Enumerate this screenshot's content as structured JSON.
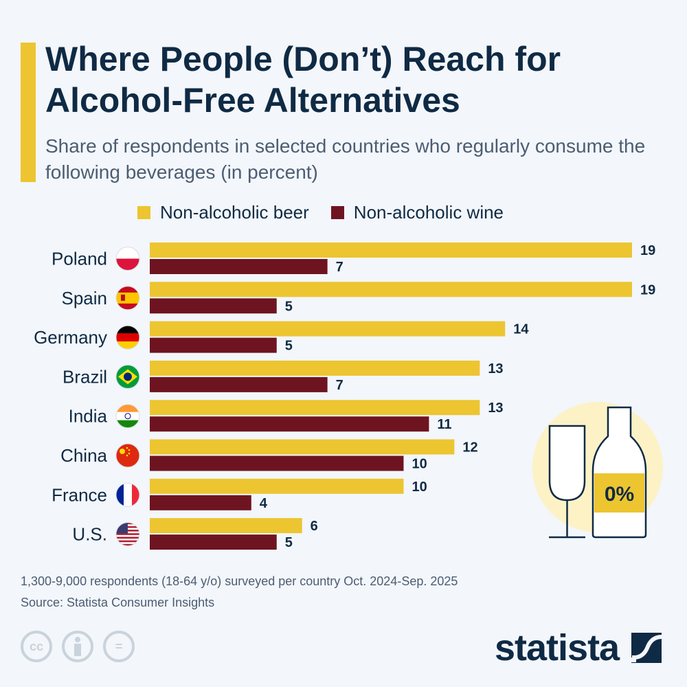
{
  "title": "Where People (Don’t) Reach for Alcohol-Free Alternatives",
  "subtitle": "Share of respondents in selected countries who regularly consume the following beverages (in percent)",
  "colors": {
    "beer": "#ecc531",
    "wine": "#6e1420",
    "text": "#0f2a44",
    "background": "#f3f6fa"
  },
  "chart_data": {
    "type": "bar",
    "orientation": "horizontal",
    "categories": [
      "Poland",
      "Spain",
      "Germany",
      "Brazil",
      "India",
      "China",
      "France",
      "U.S."
    ],
    "series": [
      {
        "name": "Non-alcoholic beer",
        "values": [
          19,
          19,
          14,
          13,
          13,
          12,
          10,
          6
        ]
      },
      {
        "name": "Non-alcoholic wine",
        "values": [
          7,
          5,
          5,
          7,
          11,
          10,
          4,
          5
        ]
      }
    ],
    "xlim": [
      0,
      19
    ],
    "grid": false,
    "legend": "top",
    "data_labels": true,
    "flags": [
      "flag-poland-icon",
      "flag-spain-icon",
      "flag-germany-icon",
      "flag-brazil-icon",
      "flag-india-icon",
      "flag-china-icon",
      "flag-france-icon",
      "flag-us-icon"
    ]
  },
  "illustration": {
    "label": "0%",
    "icon": "wine-glass-and-bottle-icon"
  },
  "footer": {
    "note": "1,300-9,000 respondents (18-64 y/o) surveyed per country Oct. 2024-Sep. 2025",
    "source": "Source: Statista Consumer Insights",
    "license_icons": [
      "cc-icon",
      "attribution-icon",
      "no-derivatives-icon"
    ],
    "cc_text": "cc",
    "nd_text": "=",
    "brand": "statista"
  }
}
